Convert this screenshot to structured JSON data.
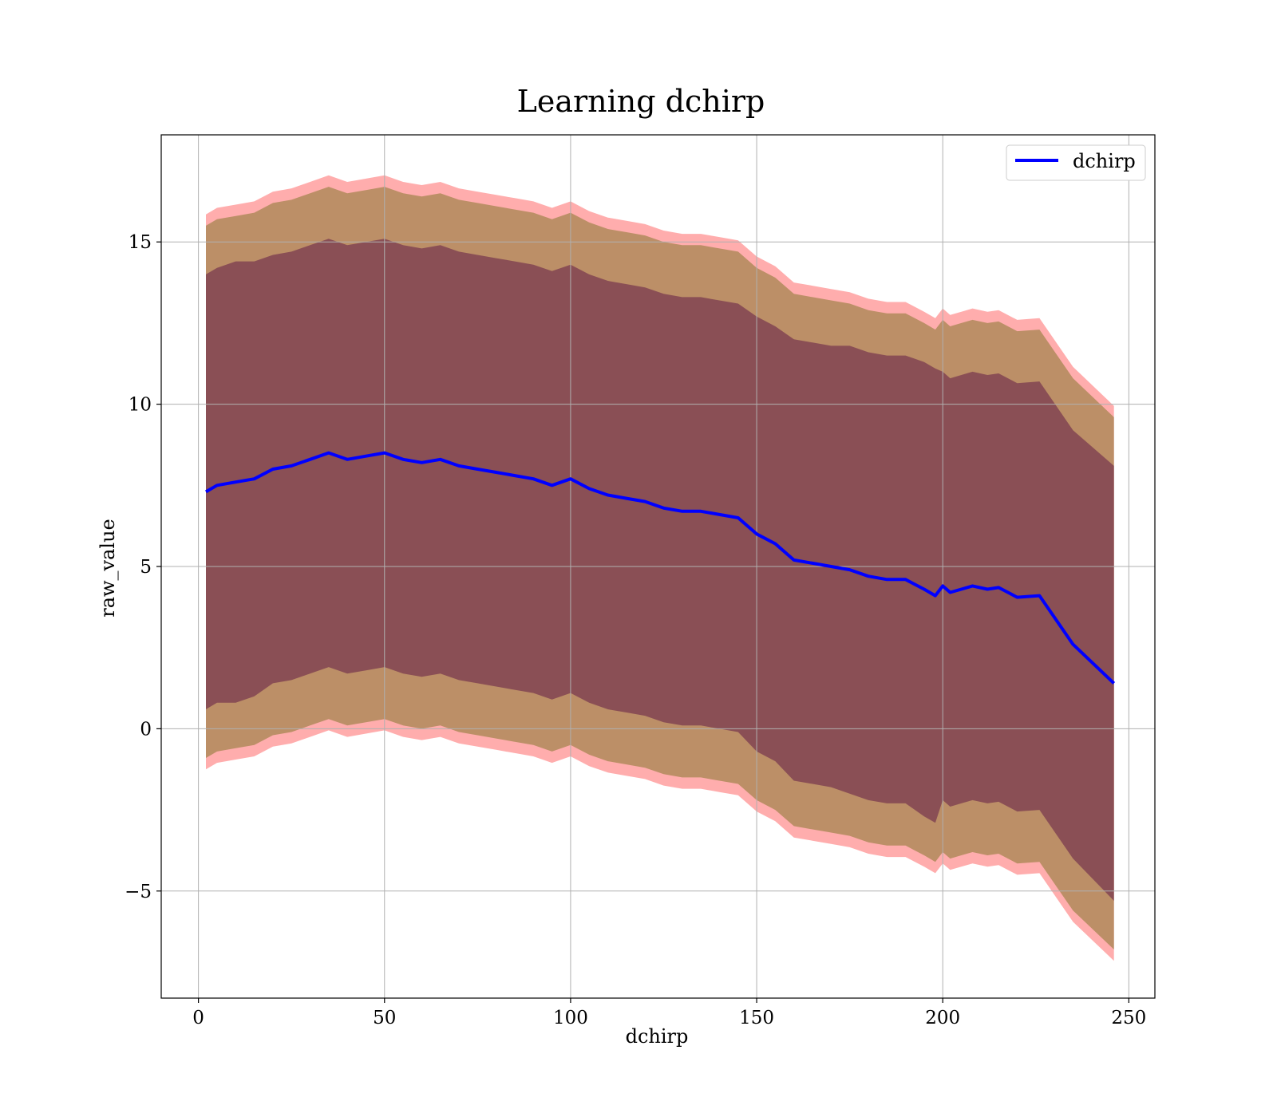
{
  "chart_data": {
    "type": "line",
    "title": "Learning dchirp",
    "xlabel": "dchirp",
    "ylabel": "raw_value",
    "xlim": [
      -10,
      257
    ],
    "ylim": [
      -8.3,
      18.3
    ],
    "x_ticks": [
      0,
      50,
      100,
      150,
      200,
      250
    ],
    "x_tick_labels": [
      "0",
      "50",
      "100",
      "150",
      "200",
      "250"
    ],
    "y_ticks": [
      -5,
      0,
      5,
      10,
      15
    ],
    "y_tick_labels": [
      "−5",
      "0",
      "5",
      "10",
      "15"
    ],
    "grid": true,
    "legend": {
      "position": "top-right",
      "entries": [
        "dchirp"
      ]
    },
    "colors": {
      "mean_line": "#0000ff",
      "outer_band": "#ff6a6a",
      "middle_band": "#b08a5a",
      "inner_band": "#7a3a4f",
      "grid": "#b0b0b0"
    },
    "series": [
      {
        "name": "dchirp",
        "x": [
          2,
          5,
          10,
          15,
          20,
          25,
          30,
          35,
          40,
          45,
          50,
          55,
          60,
          65,
          70,
          75,
          80,
          85,
          90,
          95,
          100,
          105,
          110,
          115,
          120,
          125,
          130,
          135,
          140,
          145,
          150,
          155,
          160,
          165,
          170,
          175,
          180,
          185,
          190,
          195,
          198,
          200,
          202,
          205,
          208,
          212,
          215,
          220,
          226,
          235,
          246
        ],
        "mean": [
          7.3,
          7.5,
          7.6,
          7.7,
          8.0,
          8.1,
          8.3,
          8.5,
          8.3,
          8.4,
          8.5,
          8.3,
          8.2,
          8.3,
          8.1,
          8.0,
          7.9,
          7.8,
          7.7,
          7.5,
          7.7,
          7.4,
          7.2,
          7.1,
          7.0,
          6.8,
          6.7,
          6.7,
          6.6,
          6.5,
          6.0,
          5.7,
          5.2,
          5.1,
          5.0,
          4.9,
          4.7,
          4.6,
          4.6,
          4.3,
          4.1,
          4.4,
          4.2,
          4.3,
          4.4,
          4.3,
          4.35,
          4.05,
          4.1,
          2.6,
          1.4
        ],
        "band_1sd": [
          6.7,
          6.7,
          6.8,
          6.7,
          6.6,
          6.6,
          6.6,
          6.6,
          6.6,
          6.6,
          6.6,
          6.6,
          6.6,
          6.6,
          6.6,
          6.6,
          6.6,
          6.6,
          6.6,
          6.6,
          6.6,
          6.6,
          6.6,
          6.6,
          6.6,
          6.6,
          6.6,
          6.6,
          6.6,
          6.6,
          6.7,
          6.7,
          6.8,
          6.8,
          6.8,
          6.9,
          6.9,
          6.9,
          6.9,
          7.0,
          7.0,
          6.6,
          6.6,
          6.6,
          6.6,
          6.6,
          6.6,
          6.6,
          6.6,
          6.6,
          6.7
        ],
        "band_2sd": [
          8.2,
          8.2,
          8.2,
          8.2,
          8.2,
          8.2,
          8.2,
          8.2,
          8.2,
          8.2,
          8.2,
          8.2,
          8.2,
          8.2,
          8.2,
          8.2,
          8.2,
          8.2,
          8.2,
          8.2,
          8.2,
          8.2,
          8.2,
          8.2,
          8.2,
          8.2,
          8.2,
          8.2,
          8.2,
          8.2,
          8.2,
          8.2,
          8.2,
          8.2,
          8.2,
          8.2,
          8.2,
          8.2,
          8.2,
          8.2,
          8.2,
          8.2,
          8.2,
          8.2,
          8.2,
          8.2,
          8.2,
          8.2,
          8.2,
          8.2,
          8.2
        ],
        "band_3sd": [
          8.55,
          8.55,
          8.55,
          8.55,
          8.55,
          8.55,
          8.55,
          8.55,
          8.55,
          8.55,
          8.55,
          8.55,
          8.55,
          8.55,
          8.55,
          8.55,
          8.55,
          8.55,
          8.55,
          8.55,
          8.55,
          8.55,
          8.55,
          8.55,
          8.55,
          8.55,
          8.55,
          8.55,
          8.55,
          8.55,
          8.55,
          8.55,
          8.55,
          8.55,
          8.55,
          8.55,
          8.55,
          8.55,
          8.55,
          8.55,
          8.55,
          8.55,
          8.55,
          8.55,
          8.55,
          8.55,
          8.55,
          8.55,
          8.55,
          8.55,
          8.55
        ]
      }
    ]
  }
}
